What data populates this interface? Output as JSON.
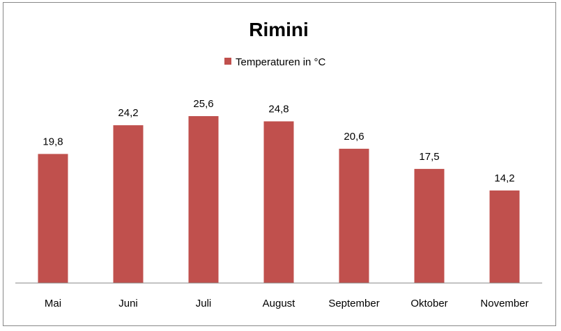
{
  "chart_data": {
    "type": "bar",
    "title": "Rimini",
    "categories": [
      "Mai",
      "Juni",
      "Juli",
      "August",
      "September",
      "Oktober",
      "November"
    ],
    "series": [
      {
        "name": "Temperaturen  in °C",
        "values": [
          19.8,
          24.2,
          25.6,
          24.8,
          20.6,
          17.5,
          14.2
        ],
        "value_labels": [
          "19,8",
          "24,2",
          "25,6",
          "24,8",
          "20,6",
          "17,5",
          "14,2"
        ],
        "color": "#c0504d"
      }
    ],
    "ylim": [
      0,
      25.6
    ],
    "grid": false,
    "legend_position": "top",
    "xlabel": "",
    "ylabel": ""
  }
}
